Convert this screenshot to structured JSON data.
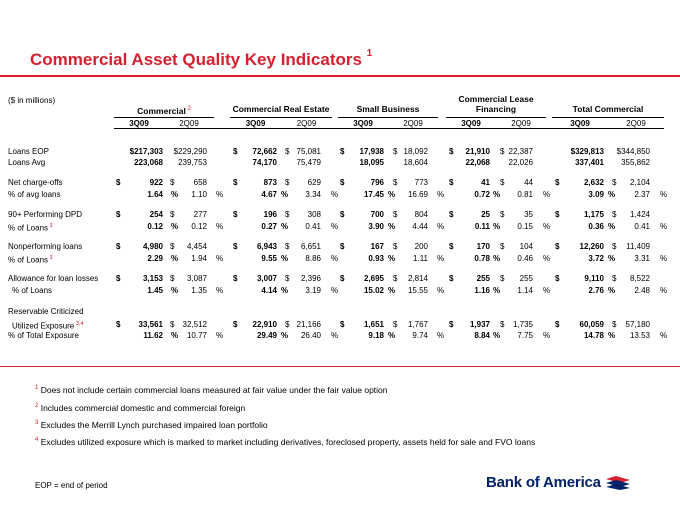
{
  "title": "Commercial Asset Quality Key Indicators",
  "title_note": "1",
  "units": "($ in millions)",
  "groups": [
    {
      "name": "Commercial",
      "note": "2"
    },
    {
      "name": "Commercial Real Estate",
      "note": ""
    },
    {
      "name": "Small Business",
      "note": ""
    },
    {
      "name": "Commercial Lease Financing",
      "line1": "Commercial Lease",
      "line2": "Financing",
      "note": ""
    },
    {
      "name": "Total Commercial",
      "note": ""
    }
  ],
  "periods": [
    "3Q09",
    "2Q09"
  ],
  "rows": [
    {
      "label": "Loans EOP",
      "note": "",
      "dollar": false,
      "pct": false,
      "values": [
        "$217,303",
        "$229,290",
        "72,662",
        "75,081",
        "17,938",
        "18,092",
        "21,910",
        "22,387",
        "$329,813",
        "$344,850"
      ]
    },
    {
      "label": "Loans Avg",
      "note": "",
      "dollar": false,
      "pct": false,
      "values": [
        "223,068",
        "239,753",
        "74,170",
        "75,479",
        "18,095",
        "18,604",
        "22,068",
        "22,026",
        "337,401",
        "355,862"
      ]
    },
    {
      "label": "Net charge-offs",
      "note": "",
      "dollar": true,
      "pct": false,
      "values": [
        "922",
        "658",
        "873",
        "629",
        "796",
        "773",
        "41",
        "44",
        "2,632",
        "2,104"
      ]
    },
    {
      "label": "% of avg loans",
      "note": "",
      "dollar": false,
      "pct": true,
      "values": [
        "1.64",
        "1.10",
        "4.67",
        "3.34",
        "17.45",
        "16.69",
        "0.72",
        "0.81",
        "3.09",
        "2.37"
      ]
    },
    {
      "label": "90+ Performing DPD",
      "note": "",
      "dollar": true,
      "pct": false,
      "values": [
        "254",
        "277",
        "196",
        "308",
        "700",
        "804",
        "25",
        "35",
        "1,175",
        "1,424"
      ]
    },
    {
      "label": "% of Loans",
      "note": "3",
      "dollar": false,
      "pct": true,
      "values": [
        "0.12",
        "0.12",
        "0.27",
        "0.41",
        "3.90",
        "4.44",
        "0.11",
        "0.15",
        "0.36",
        "0.41"
      ]
    },
    {
      "label": "Nonperforming loans",
      "note": "",
      "dollar": true,
      "pct": false,
      "values": [
        "4,980",
        "4,454",
        "6,943",
        "6,651",
        "167",
        "200",
        "170",
        "104",
        "12,260",
        "11,409"
      ]
    },
    {
      "label": "% of Loans",
      "note": "3",
      "dollar": false,
      "pct": true,
      "values": [
        "2.29",
        "1.94",
        "9.55",
        "8.86",
        "0.93",
        "1.11",
        "0.78",
        "0.46",
        "3.72",
        "3.31"
      ]
    },
    {
      "label": "Allowance for loan losses",
      "note": "",
      "dollar": true,
      "pct": false,
      "values": [
        "3,153",
        "3,087",
        "3,007",
        "2,396",
        "2,695",
        "2,814",
        "255",
        "255",
        "9,110",
        "8,522"
      ]
    },
    {
      "label": "% of Loans",
      "note": "",
      "dollar": false,
      "pct": true,
      "values": [
        "1.45",
        "1.35",
        "4.14",
        "3.19",
        "15.02",
        "15.55",
        "1.16",
        "1.14",
        "2.76",
        "2.48"
      ]
    },
    {
      "label": "Reservable Criticized",
      "note": "",
      "header_only": true
    },
    {
      "label": "Utilized Exposure",
      "note": "3,4",
      "dollar": true,
      "pct": false,
      "values": [
        "33,561",
        "32,512",
        "22,910",
        "21,166",
        "1,651",
        "1,767",
        "1,937",
        "1,735",
        "60,059",
        "57,180"
      ]
    },
    {
      "label": "% of Total Exposure",
      "note": "",
      "dollar": false,
      "pct": true,
      "values": [
        "11.62",
        "10.77",
        "29.49",
        "26.40",
        "9.18",
        "9.74",
        "8.84",
        "7.75",
        "14.78",
        "13.53"
      ]
    }
  ],
  "footnotes": [
    {
      "num": "1",
      "text": "Does not include certain commercial loans measured at fair value under the fair value option"
    },
    {
      "num": "2",
      "text": "Includes commercial domestic and commercial foreign"
    },
    {
      "num": "3",
      "text": "Excludes the Merrill Lynch purchased impaired loan portfolio"
    },
    {
      "num": "4",
      "text": "Excludes utilized exposure which is marked to market including derivatives, foreclosed property, assets held for sale and FVO loans"
    }
  ],
  "eop_note": "EOP = end of period",
  "logo_text": "Bank of America",
  "colors": {
    "accent": "#d6202f",
    "brand_blue": "#012169"
  }
}
